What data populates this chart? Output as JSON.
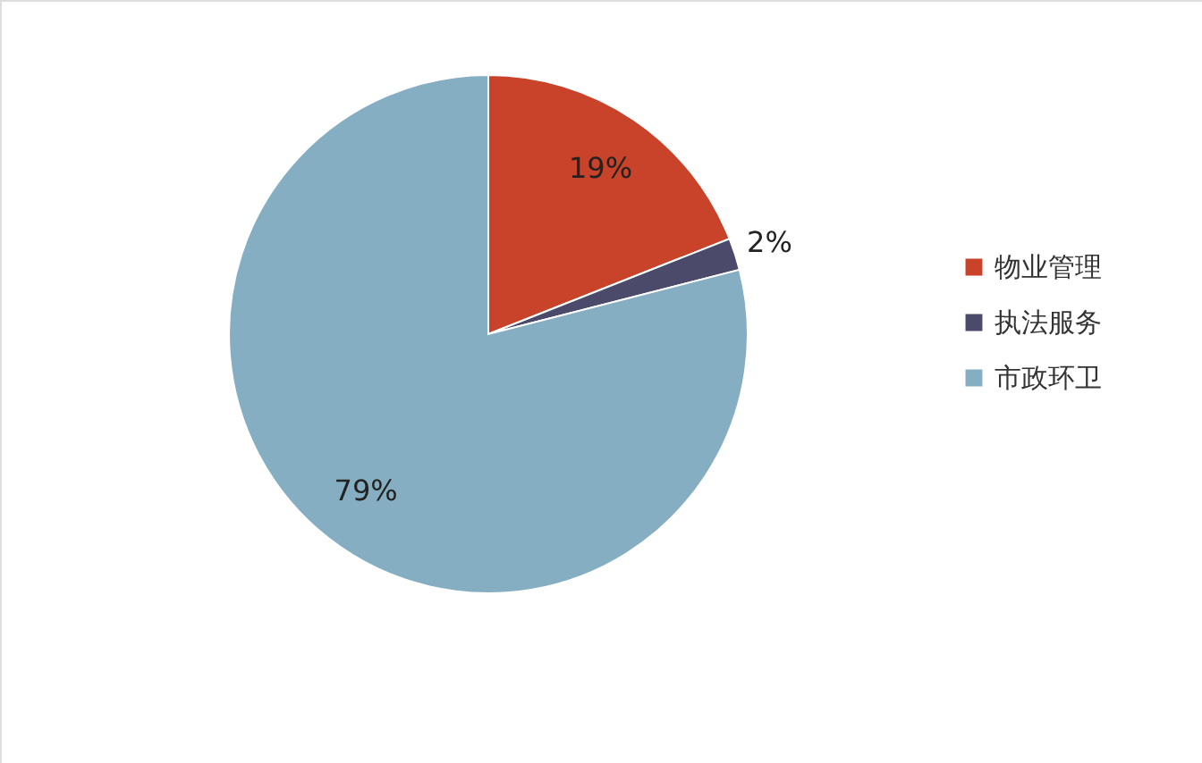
{
  "chart_data": {
    "type": "pie",
    "categories": [
      "物业管理",
      "执法服务",
      "市政环卫"
    ],
    "values": [
      19,
      2,
      79
    ],
    "colors": [
      "#c8432a",
      "#4b4a6b",
      "#86aec3"
    ],
    "value_labels": [
      "19%",
      "2%",
      "79%"
    ],
    "legend": "right"
  }
}
